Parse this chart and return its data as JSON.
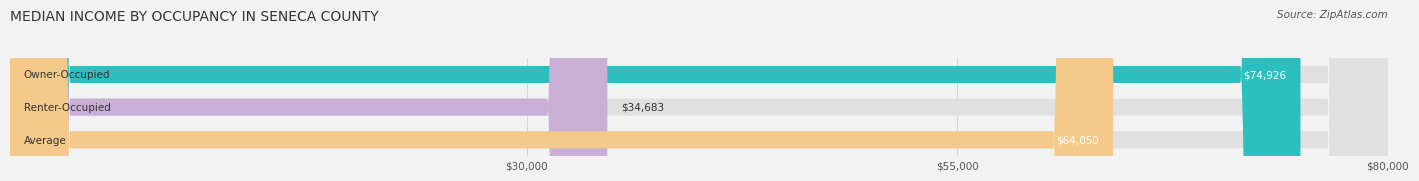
{
  "title": "MEDIAN INCOME BY OCCUPANCY IN SENECA COUNTY",
  "source": "Source: ZipAtlas.com",
  "categories": [
    "Owner-Occupied",
    "Renter-Occupied",
    "Average"
  ],
  "values": [
    74926,
    34683,
    64050
  ],
  "bar_colors": [
    "#2bbfbf",
    "#c9aed6",
    "#f5c98a"
  ],
  "label_colors_cat": [
    "#333333",
    "#333333",
    "#333333"
  ],
  "label_colors_val": [
    "white",
    "#333333",
    "white"
  ],
  "value_labels": [
    "$74,926",
    "$34,683",
    "$64,050"
  ],
  "xmin": 0,
  "xmax": 80000,
  "xticks": [
    30000,
    55000,
    80000
  ],
  "xticklabels": [
    "$30,000",
    "$55,000",
    "$80,000"
  ],
  "background_color": "#f2f2f2",
  "bar_bg_color": "#e0e0e0",
  "bar_height": 0.52,
  "title_fontsize": 10,
  "source_fontsize": 7.5,
  "label_fontsize": 7.5,
  "value_fontsize": 7.5
}
